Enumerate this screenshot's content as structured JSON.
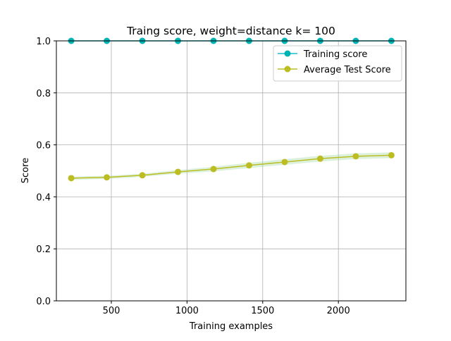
{
  "chart_data": {
    "type": "line",
    "title": "Traing score, weight=distance k= 100",
    "xlabel": "Training examples",
    "ylabel": "Score",
    "xlim": [
      137,
      2446
    ],
    "ylim": [
      0.0,
      1.0
    ],
    "x_ticks": [
      500,
      1000,
      1500,
      2000
    ],
    "x_tick_labels": [
      "500",
      "1000",
      "1500",
      "2000"
    ],
    "y_ticks": [
      0.0,
      0.2,
      0.4,
      0.6,
      0.8,
      1.0
    ],
    "y_tick_labels": [
      "0.0",
      "0.2",
      "0.4",
      "0.6",
      "0.8",
      "1.0"
    ],
    "grid": true,
    "legend_position": "upper right",
    "x": [
      235,
      470,
      705,
      940,
      1175,
      1410,
      1645,
      1880,
      2115,
      2350
    ],
    "series": [
      {
        "name": "Training score",
        "color": "#17becf",
        "marker_color": "#00b3b3",
        "values": [
          1.0,
          1.0,
          1.0,
          1.0,
          1.0,
          1.0,
          1.0,
          1.0,
          1.0,
          1.0
        ]
      },
      {
        "name": "Average Test Score",
        "color": "#bcbd22",
        "values": [
          0.472,
          0.475,
          0.483,
          0.496,
          0.507,
          0.521,
          0.534,
          0.547,
          0.556,
          0.56
        ],
        "band_lower": [
          0.466,
          0.469,
          0.477,
          0.489,
          0.498,
          0.511,
          0.523,
          0.536,
          0.545,
          0.549
        ],
        "band_upper": [
          0.478,
          0.481,
          0.489,
          0.503,
          0.516,
          0.531,
          0.545,
          0.558,
          0.567,
          0.571
        ],
        "band_color": "#9ad69a"
      }
    ]
  }
}
